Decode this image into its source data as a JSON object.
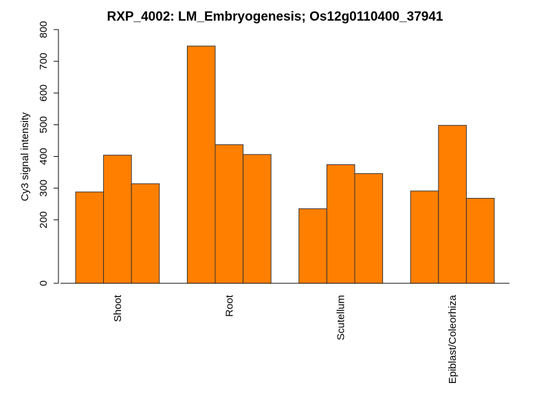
{
  "chart_data": {
    "type": "bar",
    "title": "RXP_4002: LM_Embryogenesis; Os12g0110400_37941",
    "xlabel": "",
    "ylabel": "Cy3 signal intensity",
    "ylim": [
      0,
      800
    ],
    "yticks": [
      0,
      200,
      300,
      400,
      500,
      600,
      700,
      800
    ],
    "categories": [
      "Shoot",
      "Root",
      "Scutellum",
      "Epiblast/Coleorhiza"
    ],
    "bars_per_category": 3,
    "values": [
      [
        288,
        404,
        314
      ],
      [
        748,
        437,
        406
      ],
      [
        235,
        374,
        346
      ],
      [
        291,
        498,
        268
      ]
    ],
    "grid": false,
    "legend": "none",
    "colors": {
      "bar_fill": "#ff7f00",
      "bar_stroke": "#333333",
      "axis": "#000000"
    }
  }
}
